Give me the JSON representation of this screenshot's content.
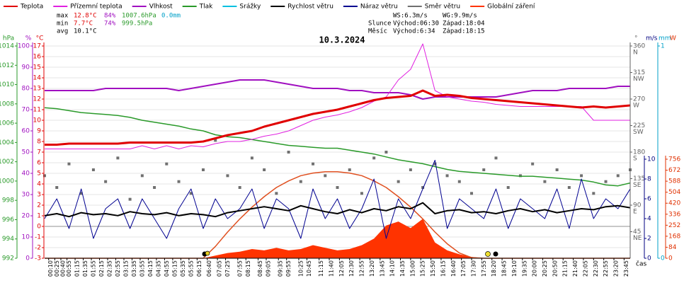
{
  "chart_data": {
    "type": "line",
    "title": "10.3.2024",
    "stats": {
      "max": {
        "label": "max",
        "temp": "12.8°C",
        "hum": "84%",
        "pres": "1007.6hPa",
        "rain": "0.0mm"
      },
      "min": {
        "label": "min",
        "temp": "7.7°C",
        "hum": "74%",
        "pres": "999.5hPa"
      },
      "avg": {
        "label": "avg",
        "temp": "10.1°C"
      }
    },
    "info": {
      "ws": "WS:6.3m/s",
      "wg": "WG:9.9m/s",
      "sun": {
        "label": "Slunce",
        "rise": "Východ:06:30",
        "set": "Západ:18:04"
      },
      "moon": {
        "label": "Měsíc",
        "rise": "Východ:6:34",
        "set": "Západ:18:15"
      }
    },
    "xlabel": "čas",
    "xlim": [
      0,
      1440
    ],
    "xticks": [
      {
        "value": 10,
        "label": "00:10"
      },
      {
        "value": 25,
        "label": "00:25"
      },
      {
        "value": 40,
        "label": "00:40"
      },
      {
        "value": 55,
        "label": "00:55"
      },
      {
        "value": 75,
        "label": "01:15"
      },
      {
        "value": 95,
        "label": "01:35"
      },
      {
        "value": 115,
        "label": "01:55"
      },
      {
        "value": 135,
        "label": "02:15"
      },
      {
        "value": 155,
        "label": "02:35"
      },
      {
        "value": 175,
        "label": "02:55"
      },
      {
        "value": 195,
        "label": "03:15"
      },
      {
        "value": 215,
        "label": "03:35"
      },
      {
        "value": 235,
        "label": "03:55"
      },
      {
        "value": 255,
        "label": "04:15"
      },
      {
        "value": 275,
        "label": "04:35"
      },
      {
        "value": 295,
        "label": "04:55"
      },
      {
        "value": 315,
        "label": "05:15"
      },
      {
        "value": 335,
        "label": "05:35"
      },
      {
        "value": 355,
        "label": "05:55"
      },
      {
        "value": 375,
        "label": "06:15"
      },
      {
        "value": 400,
        "label": "06:40"
      },
      {
        "value": 425,
        "label": "07:05"
      },
      {
        "value": 445,
        "label": "07:25"
      },
      {
        "value": 475,
        "label": "07:55"
      },
      {
        "value": 495,
        "label": "08:15"
      },
      {
        "value": 525,
        "label": "08:45"
      },
      {
        "value": 545,
        "label": "09:05"
      },
      {
        "value": 575,
        "label": "09:35"
      },
      {
        "value": 595,
        "label": "09:55"
      },
      {
        "value": 625,
        "label": "10:25"
      },
      {
        "value": 645,
        "label": "10:45"
      },
      {
        "value": 675,
        "label": "11:15"
      },
      {
        "value": 700,
        "label": "11:40"
      },
      {
        "value": 725,
        "label": "12:05"
      },
      {
        "value": 750,
        "label": "12:30"
      },
      {
        "value": 775,
        "label": "12:55"
      },
      {
        "value": 800,
        "label": "13:20"
      },
      {
        "value": 825,
        "label": "13:45"
      },
      {
        "value": 850,
        "label": "14:10"
      },
      {
        "value": 875,
        "label": "14:35"
      },
      {
        "value": 900,
        "label": "15:00"
      },
      {
        "value": 925,
        "label": "15:25"
      },
      {
        "value": 950,
        "label": "15:50"
      },
      {
        "value": 975,
        "label": "16:15"
      },
      {
        "value": 1000,
        "label": "16:40"
      },
      {
        "value": 1025,
        "label": "17:05"
      },
      {
        "value": 1050,
        "label": "17:30"
      },
      {
        "value": 1075,
        "label": "17:55"
      },
      {
        "value": 1100,
        "label": "18:20"
      },
      {
        "value": 1125,
        "label": "18:45"
      },
      {
        "value": 1150,
        "label": "19:10"
      },
      {
        "value": 1175,
        "label": "19:35"
      },
      {
        "value": 1200,
        "label": "20:00"
      },
      {
        "value": 1225,
        "label": "20:25"
      },
      {
        "value": 1250,
        "label": "20:50"
      },
      {
        "value": 1275,
        "label": "21:15"
      },
      {
        "value": 1300,
        "label": "21:40"
      },
      {
        "value": 1325,
        "label": "22:05"
      },
      {
        "value": 1350,
        "label": "22:30"
      },
      {
        "value": 1375,
        "label": "22:55"
      },
      {
        "value": 1400,
        "label": "23:20"
      },
      {
        "value": 1425,
        "label": "23:45"
      }
    ],
    "axes": {
      "hpa": {
        "label": "hPa",
        "color": "#2a9a2a",
        "lim": [
          992,
          1014
        ],
        "ticks": [
          992,
          994,
          996,
          998,
          1000,
          1002,
          1004,
          1006,
          1008,
          1010,
          1012,
          1014
        ]
      },
      "pct": {
        "label": "%",
        "color": "#a010c0",
        "lim": [
          0,
          100
        ],
        "ticks": [
          0,
          10,
          20,
          30,
          40,
          50,
          60,
          70,
          80,
          90,
          100
        ]
      },
      "temp": {
        "label": "°C",
        "color": "#e00000",
        "lim": [
          -3,
          17
        ],
        "ticks": [
          -3,
          -2,
          -1,
          0,
          1,
          2,
          3,
          4,
          5,
          6,
          7,
          8,
          9,
          10,
          11,
          12,
          13,
          14,
          15,
          16,
          17
        ]
      },
      "dir": {
        "label": "°",
        "color": "#606060",
        "lim": [
          0,
          360
        ],
        "ticks": [
          {
            "value": 45,
            "label": "45",
            "dir": "NE"
          },
          {
            "value": 90,
            "label": "90",
            "dir": "E"
          },
          {
            "value": 135,
            "label": "135",
            "dir": "SE"
          },
          {
            "value": 180,
            "label": "180",
            "dir": "S"
          },
          {
            "value": 225,
            "label": "225",
            "dir": "SW"
          },
          {
            "value": 270,
            "label": "270",
            "dir": "W"
          },
          {
            "value": 315,
            "label": "315",
            "dir": "NW"
          },
          {
            "value": 360,
            "label": "360",
            "dir": "N"
          }
        ]
      },
      "ms": {
        "label": "m/s",
        "color": "#000080",
        "lim": [
          0,
          10
        ],
        "ticks": [
          0,
          2,
          4,
          6,
          8,
          10
        ]
      },
      "mm": {
        "label": "mm",
        "color": "#00a0c8",
        "lim": [
          0,
          1
        ],
        "ticks": [
          0,
          1
        ]
      },
      "w": {
        "label": "W",
        "color": "#e03000",
        "lim": [
          0,
          756
        ],
        "ticks": [
          0,
          84,
          168,
          252,
          336,
          420,
          504,
          588,
          672,
          756
        ]
      }
    },
    "grid": true,
    "x": [
      0,
      30,
      60,
      90,
      120,
      150,
      180,
      210,
      240,
      270,
      300,
      330,
      360,
      390,
      420,
      450,
      480,
      510,
      540,
      570,
      600,
      630,
      660,
      690,
      720,
      750,
      780,
      810,
      840,
      870,
      900,
      930,
      960,
      990,
      1020,
      1050,
      1080,
      1110,
      1140,
      1170,
      1200,
      1230,
      1260,
      1290,
      1320,
      1350,
      1380,
      1410,
      1440
    ],
    "series": [
      {
        "name": "Teplota",
        "color": "#e00000",
        "axis": "temp",
        "style": "line",
        "width": 3,
        "values": [
          7.7,
          7.7,
          7.8,
          7.8,
          7.8,
          7.8,
          7.8,
          7.9,
          7.9,
          7.9,
          7.9,
          7.9,
          7.9,
          8.0,
          8.3,
          8.6,
          8.8,
          9.0,
          9.4,
          9.7,
          10.0,
          10.3,
          10.6,
          10.8,
          11.0,
          11.3,
          11.6,
          11.9,
          12.1,
          12.2,
          12.3,
          12.8,
          12.3,
          12.4,
          12.3,
          12.1,
          12.0,
          11.9,
          11.8,
          11.7,
          11.6,
          11.5,
          11.4,
          11.3,
          11.2,
          11.3,
          11.2,
          11.3,
          11.4
        ]
      },
      {
        "name": "Přízemní teplota",
        "color": "#e020e0",
        "axis": "temp",
        "style": "line",
        "width": 1,
        "values": [
          7.3,
          7.3,
          7.3,
          7.3,
          7.3,
          7.3,
          7.3,
          7.3,
          7.6,
          7.3,
          7.6,
          7.3,
          7.6,
          7.5,
          7.8,
          8.0,
          8.0,
          8.2,
          8.5,
          8.7,
          9.0,
          9.5,
          10.0,
          10.3,
          10.5,
          10.8,
          11.2,
          11.8,
          12.2,
          13.8,
          14.8,
          17.2,
          12.8,
          12.2,
          12.0,
          11.8,
          11.7,
          11.5,
          11.4,
          11.3,
          11.3,
          11.3,
          11.3,
          11.3,
          11.3,
          10.0,
          10.0,
          10.0,
          10.0
        ]
      },
      {
        "name": "Vlhkost",
        "color": "#a010c0",
        "axis": "pct",
        "style": "line",
        "width": 2,
        "values": [
          79,
          79,
          79,
          79,
          79,
          80,
          80,
          80,
          80,
          80,
          80,
          79,
          80,
          81,
          82,
          83,
          84,
          84,
          84,
          83,
          82,
          81,
          80,
          80,
          80,
          79,
          79,
          78,
          78,
          78,
          77,
          75,
          76,
          76,
          76,
          76,
          76,
          76,
          77,
          78,
          79,
          79,
          79,
          80,
          80,
          80,
          80,
          81,
          81
        ]
      },
      {
        "name": "Tlak",
        "color": "#2a9a2a",
        "axis": "hpa",
        "style": "line",
        "width": 1.5,
        "values": [
          1007.6,
          1007.5,
          1007.3,
          1007.1,
          1007.0,
          1006.9,
          1006.8,
          1006.6,
          1006.3,
          1006.1,
          1005.9,
          1005.7,
          1005.4,
          1005.2,
          1004.8,
          1004.6,
          1004.5,
          1004.3,
          1004.1,
          1003.9,
          1003.7,
          1003.6,
          1003.5,
          1003.4,
          1003.4,
          1003.2,
          1003.0,
          1002.8,
          1002.5,
          1002.2,
          1002.0,
          1001.8,
          1001.5,
          1001.2,
          1001.0,
          1000.9,
          1000.8,
          1000.7,
          1000.6,
          1000.5,
          1000.5,
          1000.4,
          1000.3,
          1000.2,
          1000.1,
          999.9,
          999.6,
          999.5,
          999.8
        ]
      },
      {
        "name": "Srážky",
        "color": "#00c0e0",
        "axis": "mm",
        "style": "none"
      },
      {
        "name": "Globální záření",
        "color": "#ff3300",
        "axis": "w",
        "style": "area",
        "values": [
          0,
          0,
          0,
          0,
          0,
          0,
          0,
          0,
          0,
          0,
          0,
          0,
          0,
          0,
          20,
          40,
          50,
          70,
          60,
          80,
          60,
          70,
          100,
          80,
          60,
          70,
          100,
          150,
          250,
          280,
          230,
          300,
          120,
          60,
          30,
          10,
          0,
          0,
          0,
          0,
          0,
          0,
          0,
          0,
          0,
          0,
          0,
          0,
          0
        ]
      },
      {
        "color": "#e05020",
        "axis": "w",
        "style": "line",
        "width": 1.5,
        "values": [
          0,
          0,
          0,
          0,
          0,
          0,
          0,
          0,
          0,
          0,
          0,
          0,
          0,
          0,
          90,
          200,
          300,
          390,
          470,
          540,
          590,
          630,
          650,
          660,
          660,
          650,
          630,
          590,
          540,
          470,
          390,
          300,
          200,
          110,
          40,
          5,
          0,
          0,
          0,
          0,
          0,
          0,
          0,
          0,
          0,
          0,
          0,
          0,
          0
        ]
      },
      {
        "name": "Směr větru",
        "color": "#707070",
        "axis": "dir",
        "style": "markers",
        "values": [
          140,
          120,
          160,
          110,
          150,
          130,
          170,
          100,
          140,
          120,
          160,
          130,
          110,
          150,
          200,
          140,
          120,
          170,
          150,
          110,
          180,
          130,
          160,
          140,
          120,
          150,
          110,
          170,
          180,
          130,
          150,
          120,
          160,
          140,
          130,
          110,
          150,
          170,
          120,
          140,
          160,
          130,
          150,
          120,
          140,
          110,
          130,
          140,
          150
        ]
      },
      {
        "name": "Náraz větru",
        "color": "#000090",
        "axis": "ms",
        "style": "line",
        "width": 1,
        "values": [
          4,
          6,
          3,
          7,
          2,
          5,
          6,
          3,
          6,
          4,
          2,
          5,
          7,
          3,
          6,
          4,
          5,
          7,
          3,
          6,
          5,
          2,
          7,
          4,
          6,
          3,
          5,
          8,
          2,
          6,
          4,
          7,
          9.9,
          3,
          6,
          5,
          4,
          7,
          3,
          6,
          5,
          4,
          7,
          3,
          8,
          4,
          6,
          5,
          7
        ]
      },
      {
        "name": "Rychlost větru",
        "color": "#000000",
        "axis": "ms",
        "style": "line",
        "width": 2,
        "values": [
          4.3,
          4.5,
          4.2,
          4.6,
          4.4,
          4.5,
          4.3,
          4.7,
          4.5,
          4.4,
          4.6,
          4.3,
          4.5,
          4.4,
          4.2,
          4.6,
          4.8,
          5.0,
          5.2,
          5.0,
          4.8,
          5.3,
          5.0,
          4.7,
          4.5,
          4.9,
          4.6,
          5.0,
          4.8,
          5.2,
          5.0,
          5.6,
          4.5,
          4.8,
          4.9,
          4.6,
          4.7,
          4.5,
          4.8,
          5.0,
          4.7,
          4.9,
          4.6,
          4.8,
          5.0,
          4.9,
          5.2,
          5.3,
          5.1
        ]
      }
    ],
    "legend_order": [
      0,
      1,
      2,
      3,
      4,
      9,
      8,
      7,
      5
    ]
  }
}
